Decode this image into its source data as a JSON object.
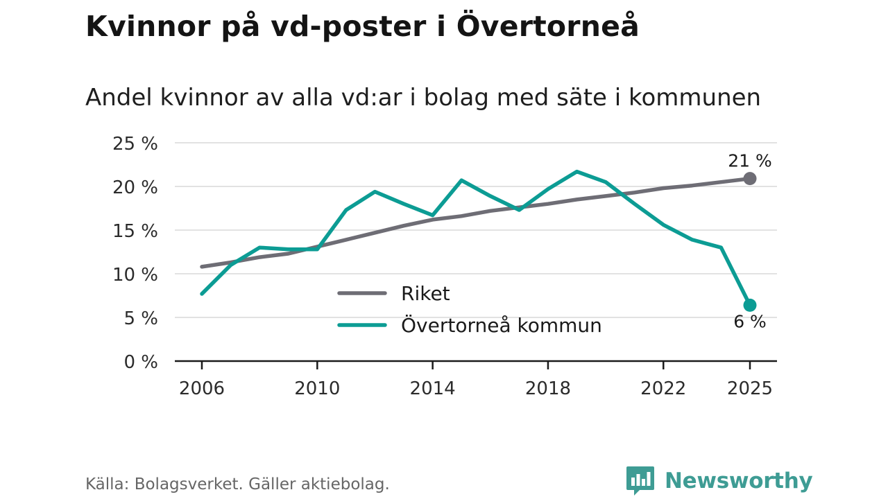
{
  "header": {
    "title": "Kvinnor på vd-poster i Övertorneå",
    "subtitle": "Andel kvinnor av alla vd:ar i bolag med säte i kommunen"
  },
  "chart_data": {
    "type": "line",
    "title": "Kvinnor på vd-poster i Övertorneå",
    "subtitle": "Andel kvinnor av alla vd:ar i bolag med säte i kommunen",
    "xlabel": "",
    "ylabel": "",
    "xlim": [
      2006,
      2025
    ],
    "ylim": [
      0,
      25
    ],
    "x_ticks": [
      2006,
      2010,
      2014,
      2018,
      2022,
      2025
    ],
    "x_tick_labels": [
      "2006",
      "2010",
      "2014",
      "2018",
      "2022",
      "2025"
    ],
    "y_ticks": [
      0,
      5,
      10,
      15,
      20,
      25
    ],
    "y_tick_labels": [
      "0 %",
      "5 %",
      "10 %",
      "15 %",
      "20 %",
      "25 %"
    ],
    "grid": true,
    "legend_position": "center",
    "x": [
      2006,
      2007,
      2008,
      2009,
      2010,
      2011,
      2012,
      2013,
      2014,
      2015,
      2016,
      2017,
      2018,
      2019,
      2020,
      2021,
      2022,
      2023,
      2024,
      2025
    ],
    "series": [
      {
        "name": "Riket",
        "color": "#6e6d75",
        "values": [
          10.8,
          11.3,
          11.9,
          12.3,
          13.1,
          13.9,
          14.7,
          15.5,
          16.2,
          16.6,
          17.2,
          17.6,
          18.0,
          18.5,
          18.9,
          19.3,
          19.8,
          20.1,
          20.5,
          20.9
        ],
        "end_label": "21 %"
      },
      {
        "name": "Övertorneå kommun",
        "color": "#0c9c94",
        "values": [
          7.7,
          11.0,
          13.0,
          12.8,
          12.8,
          17.3,
          19.4,
          18.0,
          16.7,
          20.7,
          18.9,
          17.3,
          19.7,
          21.7,
          20.5,
          18.0,
          15.6,
          13.9,
          13.0,
          6.4
        ],
        "end_label": "6 %"
      }
    ]
  },
  "footer": {
    "source": "Källa: Bolagsverket. Gäller aktiebolag.",
    "brand": "Newsworthy",
    "brand_color": "#3e9c94"
  }
}
